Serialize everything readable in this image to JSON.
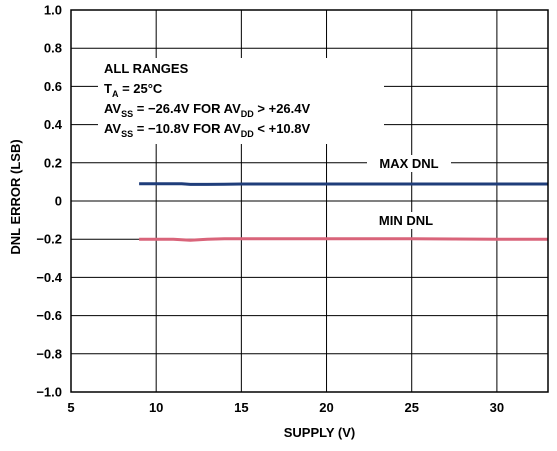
{
  "chart_data": {
    "type": "line",
    "xlabel": "SUPPLY (V)",
    "ylabel": "DNL ERROR (LSB)",
    "xlim": [
      5,
      33
    ],
    "ylim": [
      -1.0,
      1.0
    ],
    "x_ticks": [
      5,
      10,
      15,
      20,
      25,
      30
    ],
    "x_tick_labels": [
      "5",
      "10",
      "15",
      "20",
      "25",
      "30"
    ],
    "y_ticks": [
      1.0,
      0.8,
      0.6,
      0.4,
      0.2,
      0,
      -0.2,
      -0.4,
      -0.6,
      -0.8,
      -1.0
    ],
    "y_tick_labels": [
      "1.0",
      "0.8",
      "0.6",
      "0.4",
      "0.2",
      "0",
      "−0.2",
      "−0.4",
      "−0.6",
      "−0.8",
      "−1.0"
    ],
    "grid": true,
    "series": [
      {
        "name": "MAX DNL",
        "color": "#1f3d7a",
        "x": [
          9,
          10,
          11,
          11.5,
          12,
          13,
          14,
          15,
          20,
          25,
          30,
          33
        ],
        "y": [
          0.09,
          0.09,
          0.09,
          0.09,
          0.087,
          0.087,
          0.088,
          0.089,
          0.089,
          0.089,
          0.089,
          0.089
        ]
      },
      {
        "name": "MIN DNL",
        "color": "#d9647a",
        "x": [
          9,
          10,
          11,
          12,
          13,
          14,
          15,
          20,
          25,
          30,
          33
        ],
        "y": [
          -0.2,
          -0.2,
          -0.2,
          -0.205,
          -0.2,
          -0.198,
          -0.198,
          -0.198,
          -0.198,
          -0.2,
          -0.2
        ]
      }
    ],
    "annotation": {
      "line1": "ALL RANGES",
      "line2": {
        "main": "T",
        "sub": "A",
        "rest": " = 25°C"
      },
      "line3": {
        "a": "AV",
        "a_sub": "SS",
        "b": " = −26.4V FOR AV",
        "b_sub": "DD",
        "c": " > +26.4V"
      },
      "line4": {
        "a": "AV",
        "a_sub": "SS",
        "b": " = −10.8V FOR AV",
        "b_sub": "DD",
        "c": " < +10.8V"
      }
    }
  }
}
